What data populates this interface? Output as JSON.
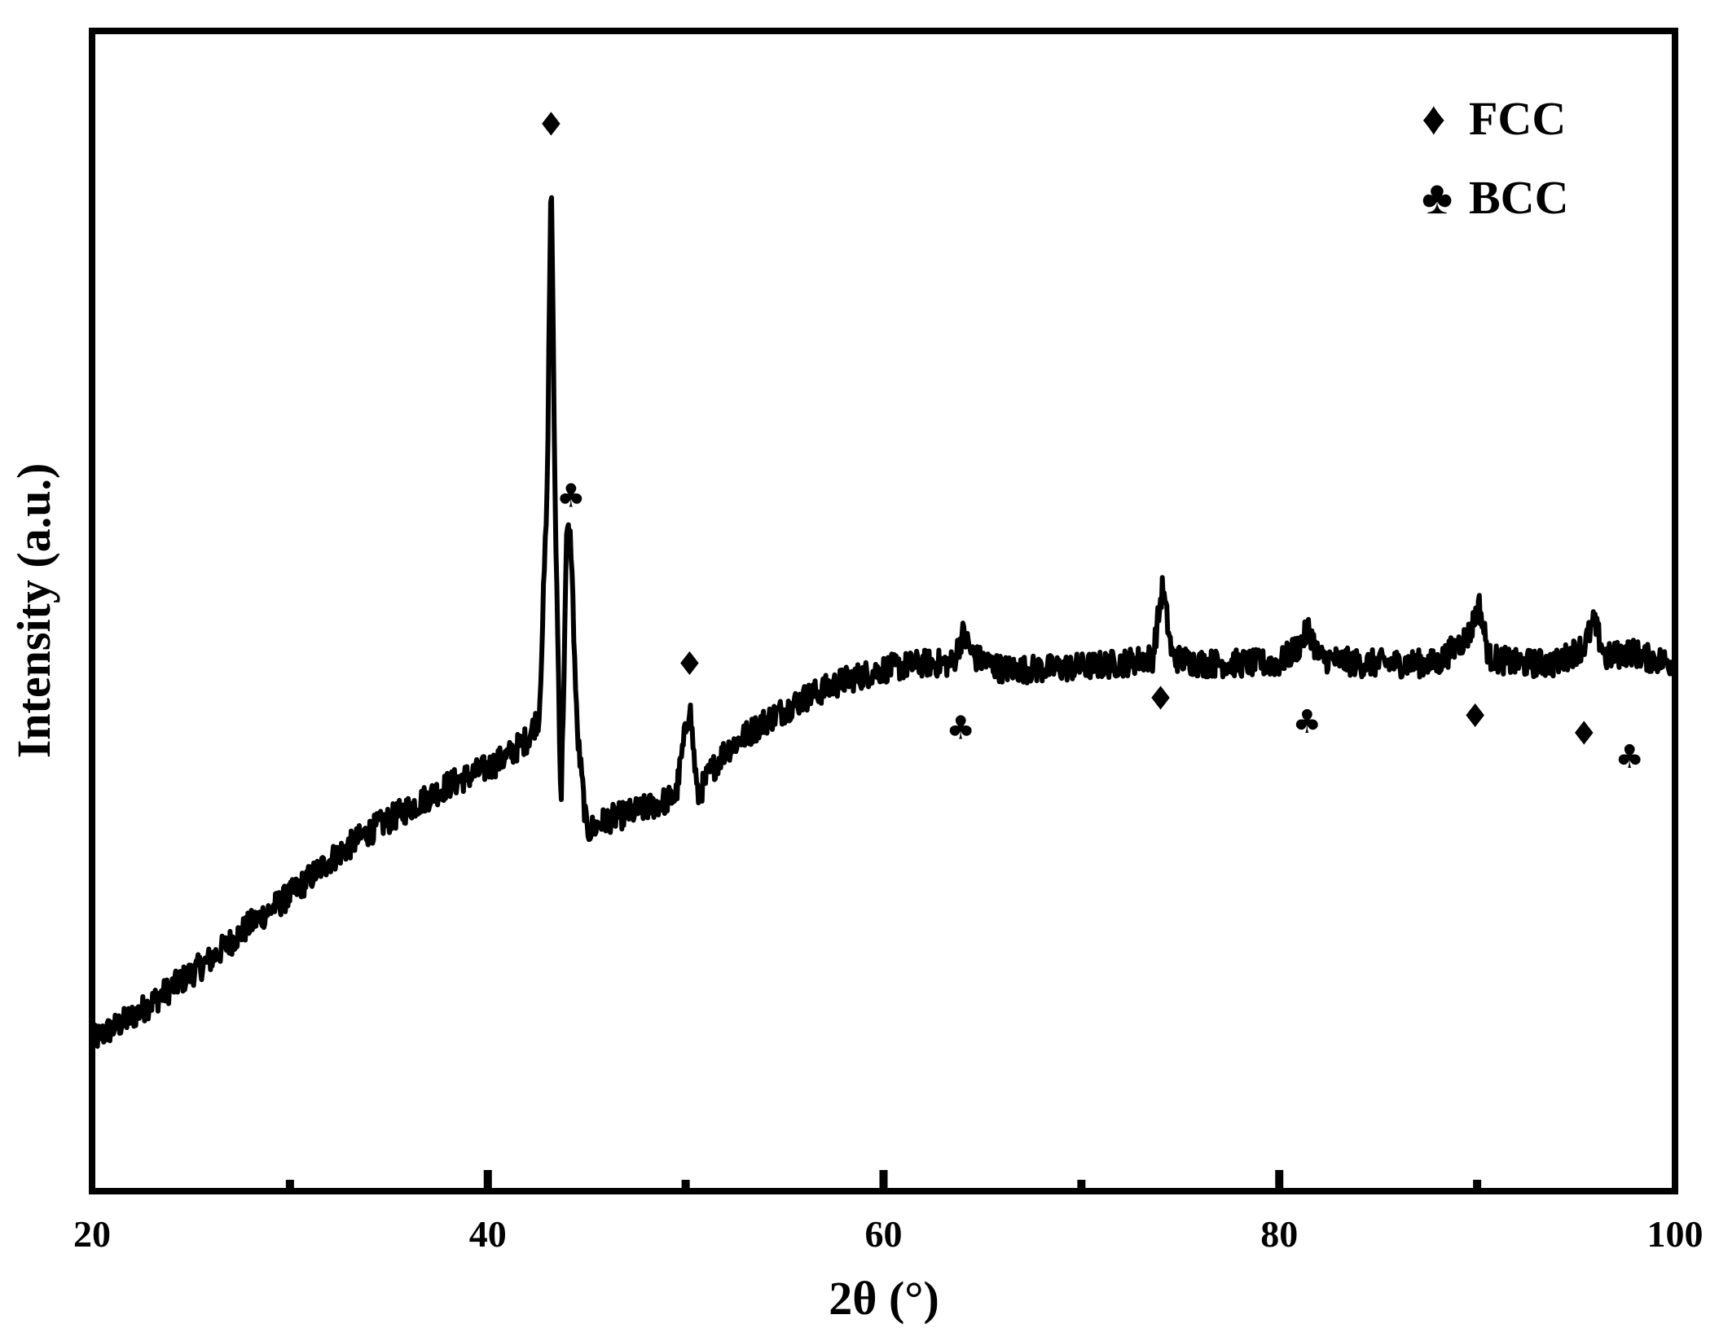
{
  "chart_data": {
    "type": "line",
    "title": "",
    "xlabel": "2θ (°)",
    "ylabel": "Intensity (a.u.)",
    "xlim": [
      20,
      100
    ],
    "ylim": [
      0,
      100
    ],
    "x_ticks": [
      20,
      40,
      60,
      80,
      100
    ],
    "x_minor_ticks": [
      30,
      50,
      70,
      90
    ],
    "x_tick_labels": [
      "20",
      "40",
      "60",
      "80",
      "100"
    ],
    "y_tick_labels": [],
    "grid": false,
    "legend_position": "top-right",
    "line_color": "#000000",
    "series": [
      {
        "values_description": "XRD pattern",
        "x": [
          20,
          22,
          24,
          26,
          28,
          30,
          32,
          34,
          36,
          38,
          40,
          41,
          42,
          42.6,
          43.0,
          43.2,
          43.4,
          43.7,
          44.0,
          44.2,
          44.5,
          45.0,
          46,
          48,
          49.5,
          50.2,
          50.6,
          51.2,
          52,
          54,
          56,
          58,
          60,
          62,
          63.5,
          64,
          64.6,
          66,
          68,
          70,
          72,
          73.6,
          74.1,
          74.6,
          76,
          78,
          80,
          81,
          81.5,
          82,
          84,
          86,
          88,
          89.6,
          90.1,
          90.6,
          92,
          94,
          95.4,
          95.9,
          96.5,
          97.8,
          98.5,
          100
        ],
        "y": [
          13,
          15,
          17.5,
          20,
          23,
          25.5,
          28.5,
          31,
          33,
          35,
          36.5,
          37.5,
          39,
          41,
          60,
          89,
          60,
          33,
          57,
          56,
          40,
          31,
          32,
          33,
          34,
          42,
          34,
          36,
          38,
          40.5,
          42.5,
          44,
          45,
          45.5,
          45.5,
          48,
          46,
          45,
          45,
          45.2,
          45.5,
          46,
          52,
          46,
          45.5,
          45.5,
          45.5,
          47,
          48.5,
          46,
          45.5,
          45.5,
          45.5,
          48,
          50.5,
          46,
          45.5,
          45.5,
          47,
          49,
          46,
          46.5,
          46,
          45.5
        ]
      }
    ],
    "markers": [
      {
        "symbol": "♦",
        "phase": "FCC",
        "x": 43.2,
        "y": 91
      },
      {
        "symbol": "♣",
        "phase": "BCC",
        "x": 44.2,
        "y": 59
      },
      {
        "symbol": "♦",
        "phase": "FCC",
        "x": 50.2,
        "y": 44.5
      },
      {
        "symbol": "♣",
        "phase": "BCC",
        "x": 63.9,
        "y": 39
      },
      {
        "symbol": "♦",
        "phase": "FCC",
        "x": 74.0,
        "y": 41.5
      },
      {
        "symbol": "♣",
        "phase": "BCC",
        "x": 81.4,
        "y": 39.5
      },
      {
        "symbol": "♦",
        "phase": "FCC",
        "x": 89.9,
        "y": 40
      },
      {
        "symbol": "♦",
        "phase": "FCC",
        "x": 95.4,
        "y": 38.5
      },
      {
        "symbol": "♣",
        "phase": "BCC",
        "x": 97.7,
        "y": 36.5
      }
    ],
    "legend": [
      {
        "symbol": "♦",
        "label": "FCC"
      },
      {
        "symbol": "♣",
        "label": "BCC"
      }
    ]
  }
}
